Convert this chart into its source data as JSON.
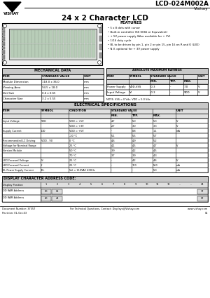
{
  "title": "24 x 2 Character LCD",
  "part_number": "LCD-024M002A",
  "brand": "Vishay",
  "logo_text": "VISHAY",
  "features_title": "FEATURES",
  "features": [
    "5 x 8 dots with cursor",
    "Built-in controller (KS 0066 or Equivalent)",
    "+ 5V power supply (Also available for + 3V)",
    "1/16 duty cycle",
    "BL to be driven by pin 1, pin 2 or pin 15, pin 16 on R and K (LED)",
    "N.V. optional for + 3V power supply"
  ],
  "mech_title": "MECHANICAL DATA",
  "mech_rows": [
    [
      "Module Dimension",
      "118.0 x 36.0",
      "mm"
    ],
    [
      "Viewing Area",
      "94.5 x 18.0",
      "mm"
    ],
    [
      "Dot Size",
      "0.6 x 0.65",
      "mm"
    ],
    [
      "Character Size",
      "3.2 x 5.55",
      "mm"
    ]
  ],
  "abs_title": "ABSOLUTE MAXIMUM RATINGS",
  "abs_rows": [
    [
      "Power Supply",
      "VDD-VSS",
      "-0.3",
      "-",
      "7.0",
      "V"
    ],
    [
      "Input Voltage",
      "Vi",
      "-0.3",
      "-",
      "VDD",
      "V"
    ]
  ],
  "abs_note": "NOTE: VSS = 0 Vdc, VDD = 5.0 Vdc",
  "elec_title": "ELECTRICAL SPECIFICATIONS",
  "elec_rows": [
    [
      "Input Voltage",
      "VDD",
      "VDD = +5V",
      "4.7",
      "5.0",
      "5.3",
      "V"
    ],
    [
      "",
      "",
      "VDD = +3V",
      "2.7",
      "3.0",
      "3.3",
      "V"
    ],
    [
      "Supply Current",
      "IDD",
      "VDD = +5V",
      "-",
      "0.8",
      "1.1",
      "mA"
    ],
    [
      "",
      "",
      "-20 °C",
      "5.1",
      "5.5",
      "5.7",
      ""
    ],
    [
      "Recommended LC Driving",
      "VDD - V0",
      "0 °C",
      "4.6",
      "4.9",
      "5.2",
      ""
    ],
    [
      "Voltage for Nominal Range",
      "",
      "25 °C",
      "4.1",
      "4.5",
      "4.7",
      "V"
    ],
    [
      "Version Module",
      "",
      "50 °C",
      "3.9",
      "4.2",
      "4.5",
      ""
    ],
    [
      "",
      "",
      "70 °C",
      "3.7",
      "3.9",
      "4.3",
      ""
    ],
    [
      "LED Forward Voltage",
      "Vf",
      "25 °C",
      "-",
      "4.2",
      "4.6",
      "V"
    ],
    [
      "LED Forward Current",
      "If",
      "25 °C",
      "-",
      "100",
      "560",
      "mA"
    ],
    [
      "EL Power Supply Current",
      "IEL",
      "Vel = 110VAC 400Hz",
      "-",
      "-",
      "5.0",
      "mA"
    ]
  ],
  "display_title": "DISPLAY CHARACTER ADDRESS CODE:",
  "display_positions": [
    "1",
    "2",
    "3",
    "4",
    "5",
    "6",
    "7",
    "8",
    "9",
    "10",
    "11",
    "12",
    "...",
    "...",
    "24"
  ],
  "display_row1_label": "DD RAM Address",
  "display_row2_label": "DD RAM Address",
  "display_row1_vals": [
    "00",
    "01",
    "",
    "",
    "",
    "",
    "",
    "",
    "",
    "",
    "",
    "",
    "",
    "",
    "17"
  ],
  "display_row2_vals": [
    "40",
    "41",
    "",
    "",
    "",
    "",
    "",
    "",
    "",
    "",
    "",
    "",
    "",
    "",
    "57"
  ],
  "doc_number": "Document Number: 37357",
  "revision": "Revision: 01-Oct-03",
  "contact": "For Technical Questions, Contact: Displays@Vishay.com",
  "website": "www.vishay.com",
  "page": "01",
  "bg_color": "#ffffff",
  "gray_header": "#c8c8c8",
  "gray_subheader": "#e0e0e0",
  "table_border": "#000000"
}
